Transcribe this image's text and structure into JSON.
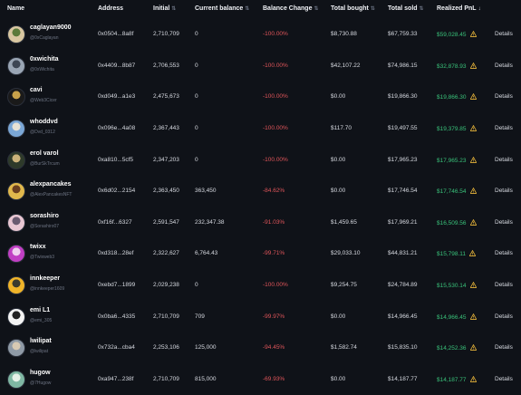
{
  "columns": {
    "name": "Name",
    "address": "Address",
    "initial": "Initial",
    "current_balance": "Current balance",
    "balance_change": "Balance Change",
    "total_bought": "Total bought",
    "total_sold": "Total sold",
    "realized_pnl": "Realized PnL"
  },
  "sort_icons": {
    "inactive": "⇅",
    "active": "↓"
  },
  "details_label": "Details",
  "colors": {
    "negative": "#e0555a",
    "positive": "#39c27a",
    "warning": "#e8b53a"
  },
  "rows": [
    {
      "name": "caglayan9000",
      "handle": "@0xCaglayan",
      "address": "0x0504...8a8f",
      "initial": "2,710,709",
      "current": "0",
      "change": "-100.00%",
      "bought": "$8,730.88",
      "sold": "$67,759.33",
      "pnl": "$59,028.45",
      "avatar": [
        "#d9c7a1",
        "#5b7a3a"
      ]
    },
    {
      "name": "0xwichita",
      "handle": "@0xWichita",
      "address": "0x4409...8b87",
      "initial": "2,706,553",
      "current": "0",
      "change": "-100.00%",
      "bought": "$42,107.22",
      "sold": "$74,986.15",
      "pnl": "$32,878.93",
      "avatar": [
        "#9aa6b5",
        "#3d4654"
      ]
    },
    {
      "name": "cavi",
      "handle": "@Web3Cicer",
      "address": "0xd049...a1e3",
      "initial": "2,475,673",
      "current": "0",
      "change": "-100.00%",
      "bought": "$0.00",
      "sold": "$19,866.30",
      "pnl": "$19,866.30",
      "avatar": [
        "#1a1a1a",
        "#c9a24a"
      ]
    },
    {
      "name": "whoddvd",
      "handle": "@Dvd_0312",
      "address": "0x096e...4a08",
      "initial": "2,367,443",
      "current": "0",
      "change": "-100.00%",
      "bought": "$117.70",
      "sold": "$19,497.55",
      "pnl": "$19,379.85",
      "avatar": [
        "#7ba7d6",
        "#e8e2d5"
      ]
    },
    {
      "name": "erol varol",
      "handle": "@BurSkTrcum",
      "address": "0xa810...5cf5",
      "initial": "2,347,203",
      "current": "0",
      "change": "-100.00%",
      "bought": "$0.00",
      "sold": "$17,965.23",
      "pnl": "$17,965.23",
      "avatar": [
        "#2e3a2a",
        "#cbb27a"
      ]
    },
    {
      "name": "alexpancakes",
      "handle": "@AlexPancakesNFT",
      "address": "0x6d02...2154",
      "initial": "2,363,450",
      "current": "363,450",
      "change": "-84.62%",
      "bought": "$0.00",
      "sold": "$17,746.54",
      "pnl": "$17,746.54",
      "avatar": [
        "#e1b84c",
        "#6b3f1f"
      ]
    },
    {
      "name": "sorashiro",
      "handle": "@Sorashiro07",
      "address": "0xf16f...6327",
      "initial": "2,591,547",
      "current": "232,347.38",
      "change": "-91.03%",
      "bought": "$1,459.65",
      "sold": "$17,969.21",
      "pnl": "$16,509.56",
      "avatar": [
        "#e9c7d3",
        "#6a5a70"
      ]
    },
    {
      "name": "twixx",
      "handle": "@Twixweb3",
      "address": "0xd318...28ef",
      "initial": "2,322,627",
      "current": "6,764.43",
      "change": "-99.71%",
      "bought": "$29,033.10",
      "sold": "$44,831.21",
      "pnl": "$15,798.11",
      "avatar": [
        "#c13fc4",
        "#f0d0f0"
      ]
    },
    {
      "name": "innkeeper",
      "handle": "@innkeeper1609",
      "address": "0xebd7...1899",
      "initial": "2,029,238",
      "current": "0",
      "change": "-100.00%",
      "bought": "$9,254.75",
      "sold": "$24,784.89",
      "pnl": "$15,530.14",
      "avatar": [
        "#f0b429",
        "#3b3a2e"
      ]
    },
    {
      "name": "emi L1",
      "handle": "@emi_305",
      "address": "0x0ba6...4335",
      "initial": "2,710,709",
      "current": "709",
      "change": "-99.97%",
      "bought": "$0.00",
      "sold": "$14,966.45",
      "pnl": "$14,966.45",
      "avatar": [
        "#f3f3f3",
        "#222222"
      ]
    },
    {
      "name": "lwilipat",
      "handle": "@lwilipat",
      "address": "0x732a...cba4",
      "initial": "2,253,106",
      "current": "125,000",
      "change": "-94.45%",
      "bought": "$1,582.74",
      "sold": "$15,835.10",
      "pnl": "$14,252.36",
      "avatar": [
        "#8f9aa6",
        "#d7c9b3"
      ]
    },
    {
      "name": "hugow",
      "handle": "@7Hugow",
      "address": "0xa947...238f",
      "initial": "2,710,709",
      "current": "815,000",
      "change": "-69.93%",
      "bought": "$0.00",
      "sold": "$14,187.77",
      "pnl": "$14,187.77",
      "avatar": [
        "#7fb7a3",
        "#e6f0e8"
      ]
    }
  ]
}
